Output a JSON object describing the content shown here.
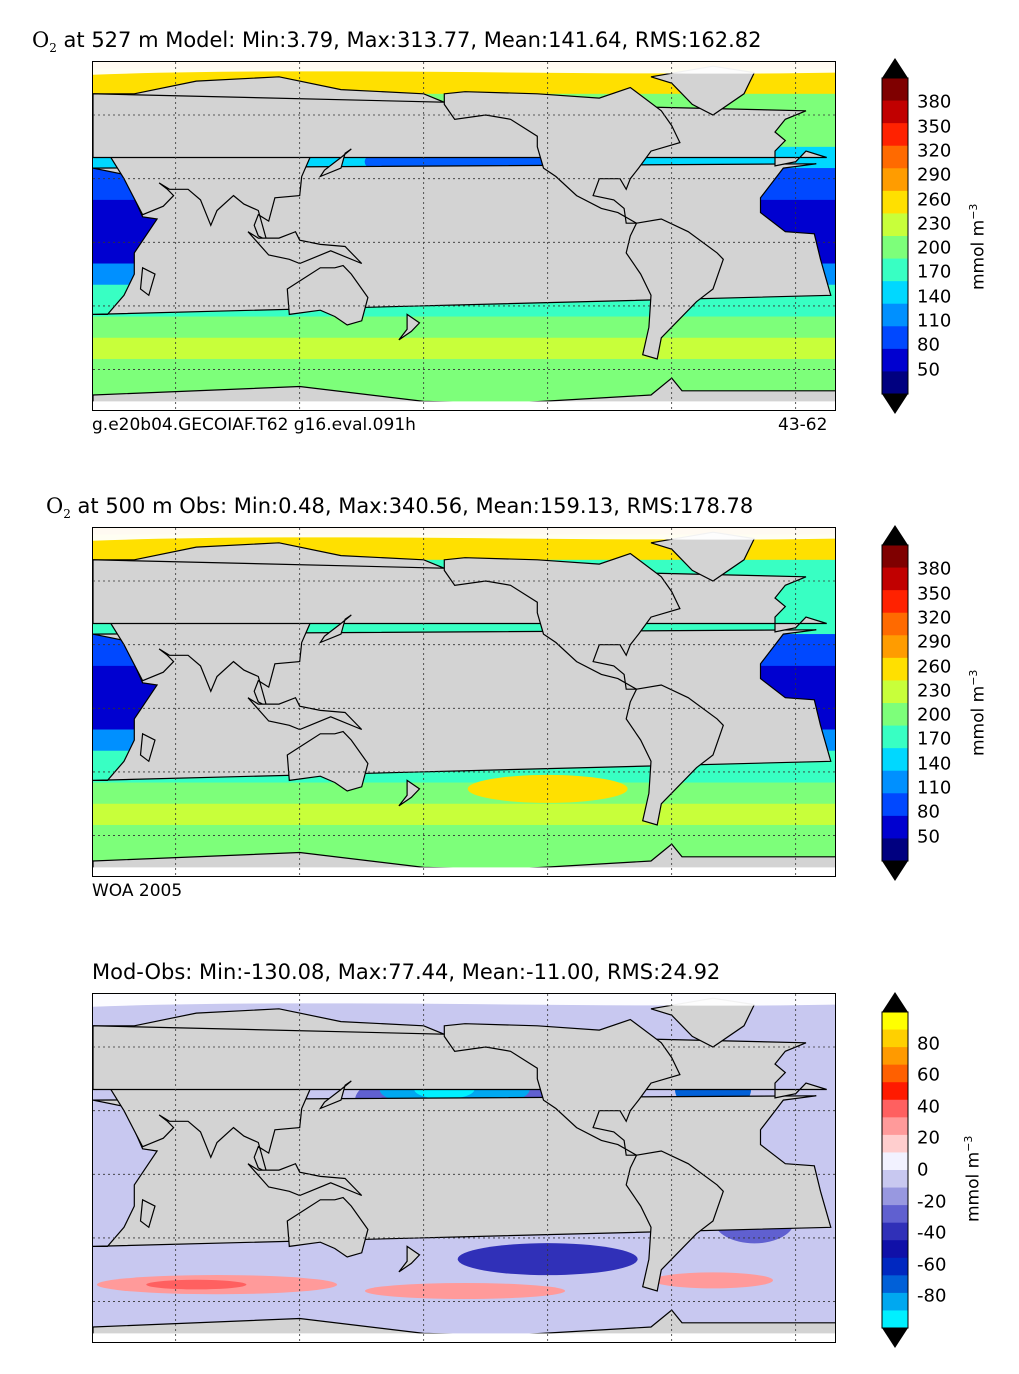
{
  "panels": [
    {
      "title_prefix": "O",
      "title_sub": "2",
      "title_text": " at 527 m Model: Min:3.79, Max:313.77, Mean:141.64, RMS:162.82",
      "caption_left": "g.e20b04.GECOIAF.T62 g16.eval.091h",
      "caption_right": "43-62",
      "colorbar": {
        "ticks": [
          "380",
          "350",
          "320",
          "290",
          "260",
          "230",
          "200",
          "170",
          "140",
          "110",
          "80",
          "50"
        ],
        "unit": "mmol m",
        "unit_exp": "−3",
        "colors": [
          "#7f0000",
          "#c10000",
          "#ff2200",
          "#ff6a00",
          "#ff9c00",
          "#ffe000",
          "#c8ff3a",
          "#7dff7a",
          "#38ffc3",
          "#00d8ff",
          "#0090ff",
          "#0048ff",
          "#0000d0",
          "#000080"
        ]
      }
    },
    {
      "title_prefix": "O",
      "title_sub": "2",
      "title_text": " at 500 m Obs: Min:0.48, Max:340.56, Mean:159.13, RMS:178.78",
      "caption_left": "WOA 2005",
      "caption_right": "",
      "colorbar": {
        "ticks": [
          "380",
          "350",
          "320",
          "290",
          "260",
          "230",
          "200",
          "170",
          "140",
          "110",
          "80",
          "50"
        ],
        "unit": "mmol m",
        "unit_exp": "−3",
        "colors": [
          "#7f0000",
          "#c10000",
          "#ff2200",
          "#ff6a00",
          "#ff9c00",
          "#ffe000",
          "#c8ff3a",
          "#7dff7a",
          "#38ffc3",
          "#00d8ff",
          "#0090ff",
          "#0048ff",
          "#0000d0",
          "#000080"
        ]
      }
    },
    {
      "title_prefix": "",
      "title_sub": "",
      "title_text": "Mod-Obs: Min:-130.08, Max:77.44, Mean:-11.00, RMS:24.92",
      "caption_left": "",
      "caption_right": "",
      "colorbar": {
        "ticks": [
          "80",
          "60",
          "40",
          "20",
          "0",
          "-20",
          "-40",
          "-60",
          "-80"
        ],
        "unit": "mmol m",
        "unit_exp": "−3",
        "colors": [
          "#ffff00",
          "#ffd000",
          "#ff9a00",
          "#ff6000",
          "#ff1a00",
          "#ff6060",
          "#ff9a9a",
          "#ffcece",
          "#f2f2ff",
          "#c8c8f0",
          "#9898e0",
          "#6060d0",
          "#3030b8",
          "#1010a8",
          "#0028c0",
          "#0060d8",
          "#00a8f0",
          "#00f0ff"
        ]
      }
    }
  ],
  "colors": {
    "land": "#d3d3d3",
    "ice": "#ffffff",
    "coast": "#000000"
  }
}
